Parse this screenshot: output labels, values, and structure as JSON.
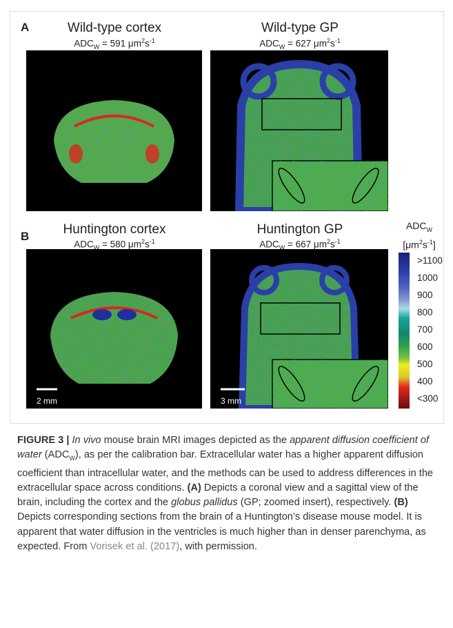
{
  "figure": {
    "panels": [
      {
        "label": "A",
        "images": [
          {
            "title": "Wild-type cortex",
            "adc": {
              "name": "ADC",
              "sub": "W",
              "eq": " = 591 μm",
              "sup1": "2",
              "unit": "s",
              "sup2": "-1"
            }
          },
          {
            "title": "Wild-type GP",
            "adc": {
              "name": "ADC",
              "sub": "W",
              "eq": " = 627 μm",
              "sup1": "2",
              "unit": "s",
              "sup2": "-1"
            }
          }
        ]
      },
      {
        "label": "B",
        "images": [
          {
            "title": "Huntington cortex",
            "adc": {
              "name": "ADC",
              "sub": "W",
              "eq": " = 580 μm",
              "sup1": "2",
              "unit": "s",
              "sup2": "-1"
            },
            "scale": "2 mm"
          },
          {
            "title": "Huntington GP",
            "adc": {
              "name": "ADC",
              "sub": "W",
              "eq": " = 667 μm",
              "sup1": "2",
              "unit": "s",
              "sup2": "-1"
            },
            "scale": "3 mm"
          }
        ]
      }
    ],
    "colorbar": {
      "title": {
        "name": "ADC",
        "sub": "W",
        "open": "[μm",
        "sup1": "2",
        "unit": "s",
        "sup2": "-1",
        "close": "]"
      },
      "ticks": [
        ">1100",
        "1000",
        "900",
        "800",
        "700",
        "600",
        "500",
        "400",
        "<300"
      ]
    },
    "caption": [
      "FIGURE 3 | ",
      "In vivo",
      " mouse brain MRI images depicted as the ",
      "apparent diffusion coefficient of water",
      " (ADC",
      "W",
      "), as per the calibration bar. Extracellular water has a higher apparent diffusion coefficient than intracellular water, and the methods can be used to address differences in the extracellular space across conditions. ",
      "(A)",
      " Depicts a coronal view and a sagittal view of the brain, including the cortex and the ",
      "globus pallidus",
      " (GP; zoomed insert), respectively. ",
      "(B)",
      " Depicts corresponding sections from the brain of a Huntington’s disease mouse model. It is apparent that water diffusion in the ventricles is much higher than in denser parenchyma, as expected. From ",
      "Vorisek et al. (2017)",
      ", with permission."
    ]
  }
}
